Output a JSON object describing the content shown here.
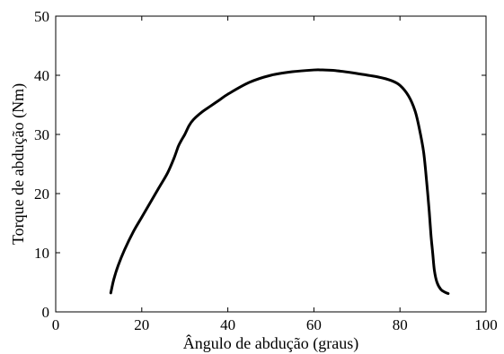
{
  "chart_data": {
    "type": "line",
    "title": "",
    "xlabel": "Ângulo de abdução (graus)",
    "ylabel": "Torque de abdução (Nm)",
    "xlim": [
      0,
      100
    ],
    "ylim": [
      0,
      50
    ],
    "xticks": [
      0,
      20,
      40,
      60,
      80,
      100
    ],
    "yticks": [
      0,
      10,
      20,
      30,
      40,
      50
    ],
    "xtick_labels": [
      "0",
      "20",
      "40",
      "60",
      "80",
      "100"
    ],
    "ytick_labels": [
      "0",
      "10",
      "20",
      "30",
      "40",
      "50"
    ],
    "grid": false,
    "legend": "none",
    "line_color": "#000000",
    "series": [
      {
        "x": [
          12.8,
          13.5,
          14.5,
          16,
          18,
          20,
          22,
          24,
          26,
          27.5,
          28.5,
          29.2,
          30,
          31,
          32,
          34,
          36,
          38,
          40,
          45,
          50,
          55,
          60,
          62,
          65,
          70,
          75,
          78,
          80,
          82,
          83.5,
          84.5,
          85.5,
          86.2,
          86.8,
          87.2,
          87.6,
          88,
          88.6,
          89.5,
          90.5,
          91.2
        ],
        "y": [
          3.2,
          5.5,
          7.8,
          10.5,
          13.5,
          16.0,
          18.5,
          21.0,
          23.5,
          26.0,
          28.0,
          29.0,
          30.0,
          31.5,
          32.5,
          33.8,
          34.8,
          35.8,
          36.8,
          38.8,
          40.0,
          40.6,
          40.9,
          40.9,
          40.8,
          40.3,
          39.7,
          39.1,
          38.3,
          36.5,
          34.0,
          31.0,
          27.0,
          22.0,
          17.0,
          13.0,
          10.0,
          7.0,
          5.0,
          3.8,
          3.3,
          3.1
        ]
      }
    ]
  }
}
